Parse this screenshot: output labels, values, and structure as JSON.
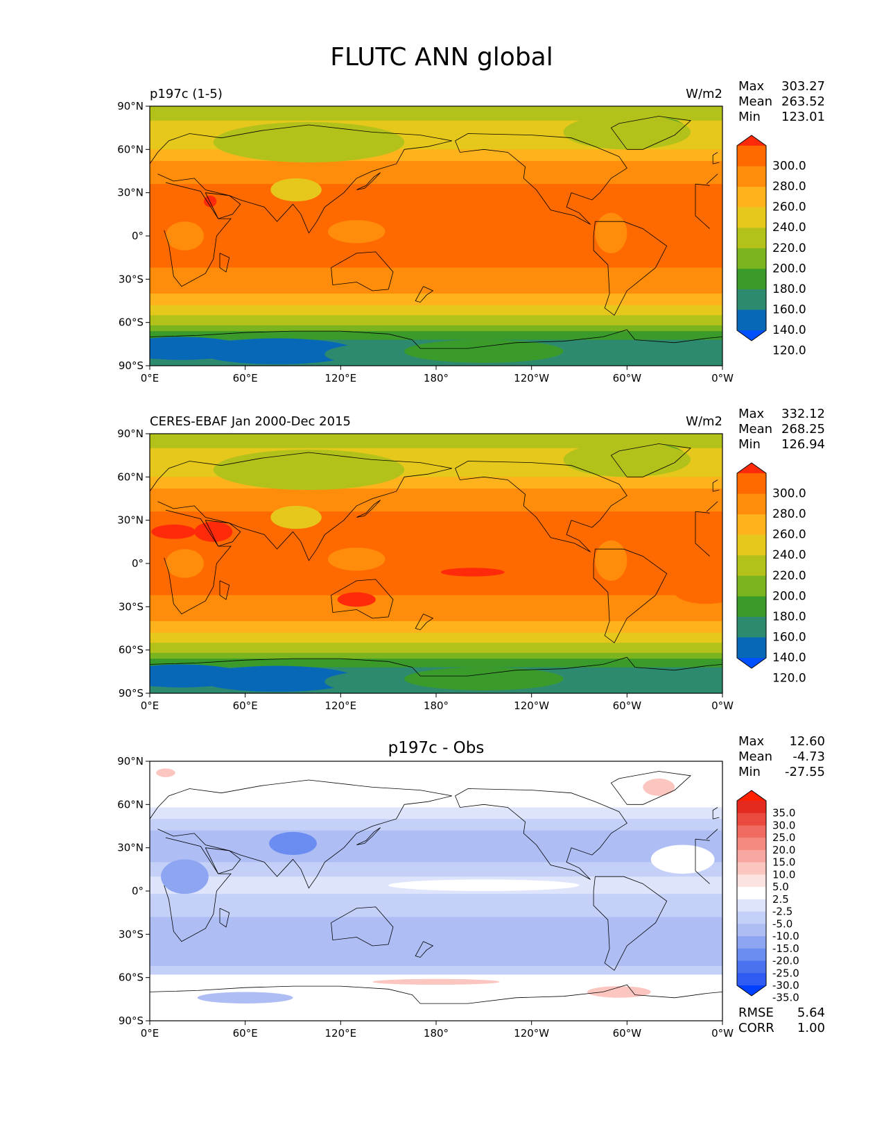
{
  "title": "FLUTC ANN global",
  "axes": {
    "lat_ticks": [
      "90°N",
      "60°N",
      "30°N",
      "0°",
      "30°S",
      "60°S",
      "90°S"
    ],
    "lon_ticks": [
      "0°E",
      "60°E",
      "120°E",
      "180°",
      "120°W",
      "60°W",
      "0°W"
    ]
  },
  "panels": [
    {
      "id": "test",
      "left_title": "p197c (1-5)",
      "center_title": "",
      "units": "W/m2",
      "stats": [
        {
          "label": "Max",
          "value": "303.27"
        },
        {
          "label": "Mean",
          "value": "263.52"
        },
        {
          "label": "Min",
          "value": "123.01"
        }
      ],
      "colorbar": [
        "300.0",
        "280.0",
        "260.0",
        "240.0",
        "220.0",
        "200.0",
        "180.0",
        "160.0",
        "140.0",
        "120.0"
      ]
    },
    {
      "id": "ref",
      "left_title": "CERES-EBAF Jan 2000-Dec 2015",
      "center_title": "",
      "units": "W/m2",
      "stats": [
        {
          "label": "Max",
          "value": "332.12"
        },
        {
          "label": "Mean",
          "value": "268.25"
        },
        {
          "label": "Min",
          "value": "126.94"
        }
      ],
      "colorbar": [
        "300.0",
        "280.0",
        "260.0",
        "240.0",
        "220.0",
        "200.0",
        "180.0",
        "160.0",
        "140.0",
        "120.0"
      ]
    },
    {
      "id": "diff",
      "left_title": "",
      "center_title": "p197c - Obs",
      "units": "",
      "stats": [
        {
          "label": "Max",
          "value": "12.60"
        },
        {
          "label": "Mean",
          "value": "-4.73"
        },
        {
          "label": "Min",
          "value": "-27.55"
        }
      ],
      "colorbar": [
        "35.0",
        "30.0",
        "25.0",
        "20.0",
        "15.0",
        "10.0",
        "5.0",
        "2.5",
        "-2.5",
        "-5.0",
        "-10.0",
        "-15.0",
        "-20.0",
        "-25.0",
        "-30.0",
        "-35.0"
      ],
      "bottom_stats": [
        {
          "label": "RMSE",
          "value": "5.64"
        },
        {
          "label": "CORR",
          "value": "1.00"
        }
      ]
    }
  ],
  "palettes": {
    "abs": [
      "#0050ff",
      "#0868b8",
      "#2e8a6e",
      "#3a9b2a",
      "#7ab41e",
      "#b2c21a",
      "#e6c81c",
      "#ffb21c",
      "#ff8c0a",
      "#ff6a00",
      "#ff2a0a"
    ],
    "diff": [
      "#0040ff",
      "#2e5cf2",
      "#4a72ee",
      "#6b8cf0",
      "#8ea6f2",
      "#aebef5",
      "#c4d0f8",
      "#dde4fb",
      "#ffffff",
      "#fde3e0",
      "#fbc6c0",
      "#f8a8a0",
      "#f48a80",
      "#f06a60",
      "#ea4a3e",
      "#e42a1e",
      "#ff2000"
    ]
  }
}
